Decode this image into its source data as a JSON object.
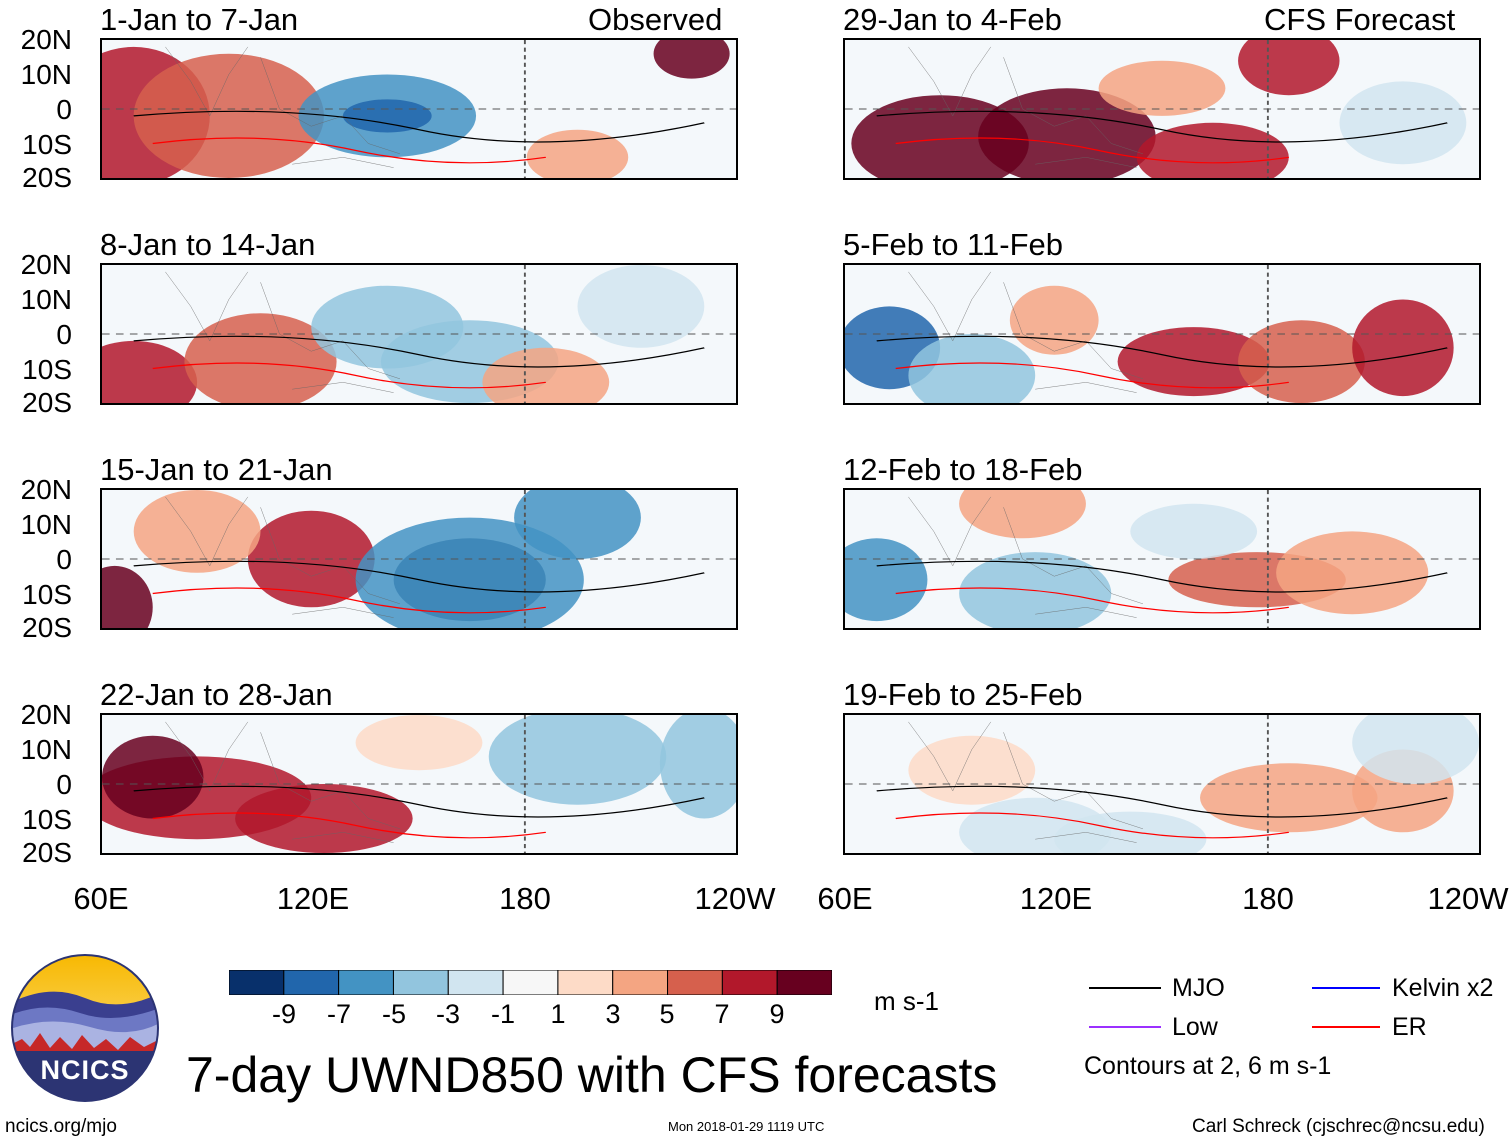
{
  "panels_left": [
    {
      "title": "1-Jan to 7-Jan",
      "tag": "Observed"
    },
    {
      "title": "8-Jan to 14-Jan",
      "tag": ""
    },
    {
      "title": "15-Jan to 21-Jan",
      "tag": ""
    },
    {
      "title": "22-Jan to 28-Jan",
      "tag": ""
    }
  ],
  "panels_right": [
    {
      "title": "29-Jan to 4-Feb",
      "tag": "CFS Forecast"
    },
    {
      "title": "5-Feb to 11-Feb",
      "tag": ""
    },
    {
      "title": "12-Feb to 18-Feb",
      "tag": ""
    },
    {
      "title": "19-Feb to 25-Feb",
      "tag": ""
    }
  ],
  "lat_labels": [
    "20N",
    "10N",
    "0",
    "10S",
    "20S"
  ],
  "lon_labels": [
    "60E",
    "120E",
    "180",
    "120W"
  ],
  "colorbar": {
    "ticks": [
      "-9",
      "-7",
      "-5",
      "-3",
      "-1",
      "1",
      "3",
      "5",
      "7",
      "9"
    ],
    "colors": [
      "#08306b",
      "#2166ac",
      "#4393c3",
      "#92c5de",
      "#d1e5f0",
      "#f7f7f7",
      "#fddbc7",
      "#f4a582",
      "#d6604d",
      "#b2182b",
      "#67001f"
    ],
    "units": "m s-1"
  },
  "legend": {
    "mjo": "MJO",
    "mjo_color": "#000000",
    "low": "Low",
    "low_color": "#9b30ff",
    "kelvin": "Kelvin x2",
    "kelvin_color": "#0000ff",
    "er": "ER",
    "er_color": "#ff0000",
    "contours": "Contours at 2, 6 m s-1"
  },
  "logo": {
    "text": "NCICS"
  },
  "main_title": "7-day UWND850 with CFS forecasts",
  "footer": {
    "left": "ncics.org/mjo",
    "center": "Mon 2018-01-29 1119 UTC",
    "right": "Carl Schreck (cjschrec@ncsu.edu)"
  }
}
